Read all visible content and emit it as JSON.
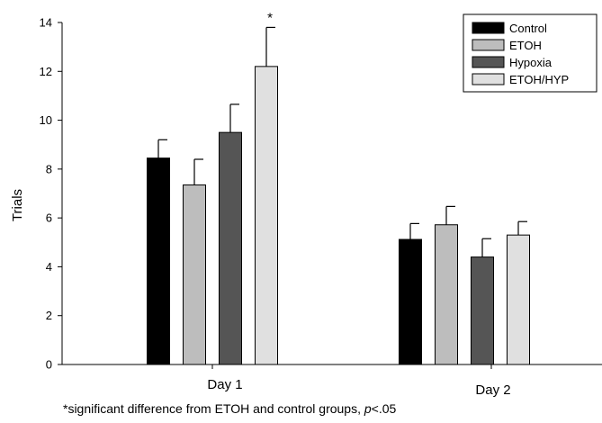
{
  "chart_data": {
    "type": "bar",
    "ylabel": "Trials",
    "xlabel": "",
    "ylim": [
      0,
      14
    ],
    "yticks": [
      "0",
      "2",
      "4",
      "6",
      "8",
      "10",
      "12",
      "14"
    ],
    "categories": [
      "Day 1",
      "Day 2"
    ],
    "series": [
      {
        "name": "Control",
        "color": "#000000",
        "values": [
          8.45,
          5.12
        ],
        "errors": [
          0.75,
          0.65
        ]
      },
      {
        "name": "ETOH",
        "color": "#bdbdbd",
        "values": [
          7.35,
          5.72
        ],
        "errors": [
          1.05,
          0.75
        ]
      },
      {
        "name": "Hypoxia",
        "color": "#555555",
        "values": [
          9.5,
          4.4
        ],
        "errors": [
          1.15,
          0.75
        ]
      },
      {
        "name": "ETOH/HYP",
        "color": "#e0e0e0",
        "values": [
          12.2,
          5.3
        ],
        "errors": [
          1.6,
          0.55
        ]
      }
    ],
    "annotations": [
      {
        "text": "*",
        "category": "Day 1",
        "series": "ETOH/HYP"
      }
    ],
    "legend_position": "top-right",
    "grid": false
  },
  "footnote": {
    "prefix": "*significant difference from ETOH and control groups, ",
    "p": "p",
    "suffix": "<.05"
  }
}
